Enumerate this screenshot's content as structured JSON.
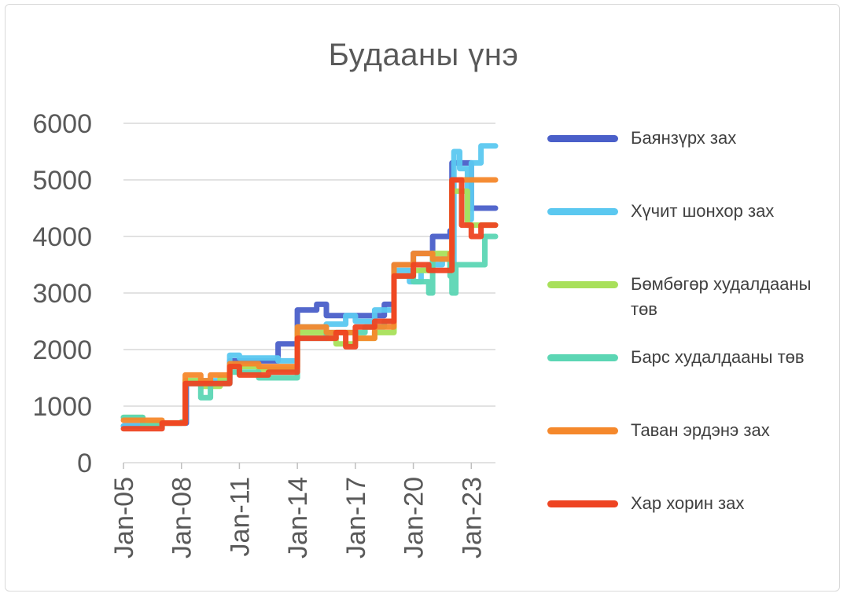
{
  "chart_data": {
    "type": "line",
    "title": "Будааны үнэ",
    "xlabel": "",
    "ylabel": "",
    "ylim": [
      0,
      6000
    ],
    "yticks": [
      0,
      1000,
      2000,
      3000,
      4000,
      5000,
      6000
    ],
    "xlim": [
      2005.0,
      2024.25
    ],
    "xticks": [
      "Jan-05",
      "Jan-08",
      "Jan-11",
      "Jan-14",
      "Jan-17",
      "Jan-20",
      "Jan-23"
    ],
    "grid": "horizontal",
    "legend": "right",
    "series": [
      {
        "name": "Баянзүрх зах",
        "color": "#4a5fc9",
        "points": [
          [
            2005.0,
            650
          ],
          [
            2006.3,
            650
          ],
          [
            2006.5,
            700
          ],
          [
            2007.0,
            700
          ],
          [
            2008.2,
            700
          ],
          [
            2008.25,
            1400
          ],
          [
            2009.5,
            1400
          ],
          [
            2010.5,
            1800
          ],
          [
            2012.5,
            1800
          ],
          [
            2013.0,
            2100
          ],
          [
            2013.9,
            2100
          ],
          [
            2014.0,
            2700
          ],
          [
            2015.0,
            2800
          ],
          [
            2015.5,
            2600
          ],
          [
            2017.5,
            2600
          ],
          [
            2018.5,
            2800
          ],
          [
            2019.0,
            3500
          ],
          [
            2020.0,
            3700
          ],
          [
            2021.0,
            4000
          ],
          [
            2021.9,
            4100
          ],
          [
            2022.0,
            5300
          ],
          [
            2022.5,
            5300
          ],
          [
            2023.0,
            4500
          ],
          [
            2024.25,
            4500
          ]
        ]
      },
      {
        "name": "Хүчит шонхор зах",
        "color": "#5bc8f0",
        "points": [
          [
            2005.0,
            650
          ],
          [
            2006.0,
            650
          ],
          [
            2007.0,
            700
          ],
          [
            2008.0,
            720
          ],
          [
            2008.2,
            1450
          ],
          [
            2009.5,
            1450
          ],
          [
            2010.5,
            1900
          ],
          [
            2011.0,
            1850
          ],
          [
            2013.0,
            1800
          ],
          [
            2013.9,
            1800
          ],
          [
            2014.0,
            2400
          ],
          [
            2015.5,
            2450
          ],
          [
            2016.5,
            2600
          ],
          [
            2017.0,
            2500
          ],
          [
            2018.0,
            2700
          ],
          [
            2019.0,
            3400
          ],
          [
            2019.8,
            3200
          ],
          [
            2020.4,
            3400
          ],
          [
            2020.8,
            3500
          ],
          [
            2021.5,
            3600
          ],
          [
            2021.9,
            3500
          ],
          [
            2022.1,
            5500
          ],
          [
            2022.4,
            5200
          ],
          [
            2022.8,
            4300
          ],
          [
            2023.0,
            5300
          ],
          [
            2023.5,
            5600
          ],
          [
            2024.25,
            5600
          ]
        ]
      },
      {
        "name": "Бөмбөгөр худалдааны төв",
        "color": "#a8e05a",
        "points": [
          [
            2005.0,
            800
          ],
          [
            2006.0,
            700
          ],
          [
            2007.0,
            700
          ],
          [
            2008.0,
            720
          ],
          [
            2008.2,
            1450
          ],
          [
            2009.0,
            1350
          ],
          [
            2010.0,
            1500
          ],
          [
            2010.5,
            1700
          ],
          [
            2012.0,
            1650
          ],
          [
            2013.9,
            1650
          ],
          [
            2014.0,
            2300
          ],
          [
            2015.5,
            2200
          ],
          [
            2016.0,
            2100
          ],
          [
            2017.0,
            2200
          ],
          [
            2018.0,
            2300
          ],
          [
            2019.0,
            3300
          ],
          [
            2020.0,
            3400
          ],
          [
            2021.0,
            3700
          ],
          [
            2021.9,
            3400
          ],
          [
            2022.0,
            4800
          ],
          [
            2022.8,
            4200
          ],
          [
            2023.5,
            4200
          ],
          [
            2024.25,
            4200
          ]
        ]
      },
      {
        "name": "Барс худалдааны төв",
        "color": "#5cd6b4",
        "points": [
          [
            2005.0,
            800
          ],
          [
            2006.0,
            650
          ],
          [
            2007.0,
            700
          ],
          [
            2008.0,
            720
          ],
          [
            2008.2,
            1400
          ],
          [
            2009.0,
            1150
          ],
          [
            2009.5,
            1400
          ],
          [
            2010.5,
            1600
          ],
          [
            2012.0,
            1500
          ],
          [
            2013.9,
            1500
          ],
          [
            2014.0,
            2200
          ],
          [
            2015.5,
            2300
          ],
          [
            2016.5,
            2300
          ],
          [
            2017.5,
            2400
          ],
          [
            2018.5,
            2500
          ],
          [
            2019.0,
            3300
          ],
          [
            2020.0,
            3200
          ],
          [
            2020.8,
            3000
          ],
          [
            2021.0,
            3600
          ],
          [
            2021.9,
            3300
          ],
          [
            2022.0,
            3000
          ],
          [
            2022.2,
            3500
          ],
          [
            2023.5,
            3500
          ],
          [
            2023.7,
            4000
          ],
          [
            2024.25,
            4000
          ]
        ]
      },
      {
        "name": "Таван эрдэнэ зах",
        "color": "#f5882b",
        "points": [
          [
            2005.0,
            750
          ],
          [
            2006.0,
            750
          ],
          [
            2007.0,
            700
          ],
          [
            2008.0,
            700
          ],
          [
            2008.2,
            1550
          ],
          [
            2009.0,
            1450
          ],
          [
            2009.5,
            1550
          ],
          [
            2010.5,
            1750
          ],
          [
            2012.0,
            1700
          ],
          [
            2013.9,
            1700
          ],
          [
            2014.0,
            2400
          ],
          [
            2015.5,
            2300
          ],
          [
            2017.0,
            2200
          ],
          [
            2018.0,
            2400
          ],
          [
            2019.0,
            3500
          ],
          [
            2020.0,
            3700
          ],
          [
            2021.0,
            3600
          ],
          [
            2021.9,
            3700
          ],
          [
            2022.0,
            5000
          ],
          [
            2024.25,
            5000
          ]
        ]
      },
      {
        "name": "Хар хорин зах",
        "color": "#ee4422",
        "points": [
          [
            2005.0,
            600
          ],
          [
            2006.0,
            600
          ],
          [
            2007.0,
            700
          ],
          [
            2008.0,
            700
          ],
          [
            2008.2,
            1400
          ],
          [
            2009.5,
            1400
          ],
          [
            2010.5,
            1700
          ],
          [
            2011.0,
            1550
          ],
          [
            2012.5,
            1600
          ],
          [
            2013.9,
            1600
          ],
          [
            2014.0,
            2200
          ],
          [
            2015.5,
            2200
          ],
          [
            2016.0,
            2300
          ],
          [
            2016.5,
            2050
          ],
          [
            2017.0,
            2400
          ],
          [
            2018.0,
            2500
          ],
          [
            2019.0,
            3300
          ],
          [
            2020.0,
            3500
          ],
          [
            2020.8,
            3400
          ],
          [
            2021.9,
            3400
          ],
          [
            2022.0,
            5000
          ],
          [
            2022.5,
            4200
          ],
          [
            2023.0,
            4000
          ],
          [
            2023.5,
            4200
          ],
          [
            2024.25,
            4200
          ]
        ]
      }
    ]
  }
}
